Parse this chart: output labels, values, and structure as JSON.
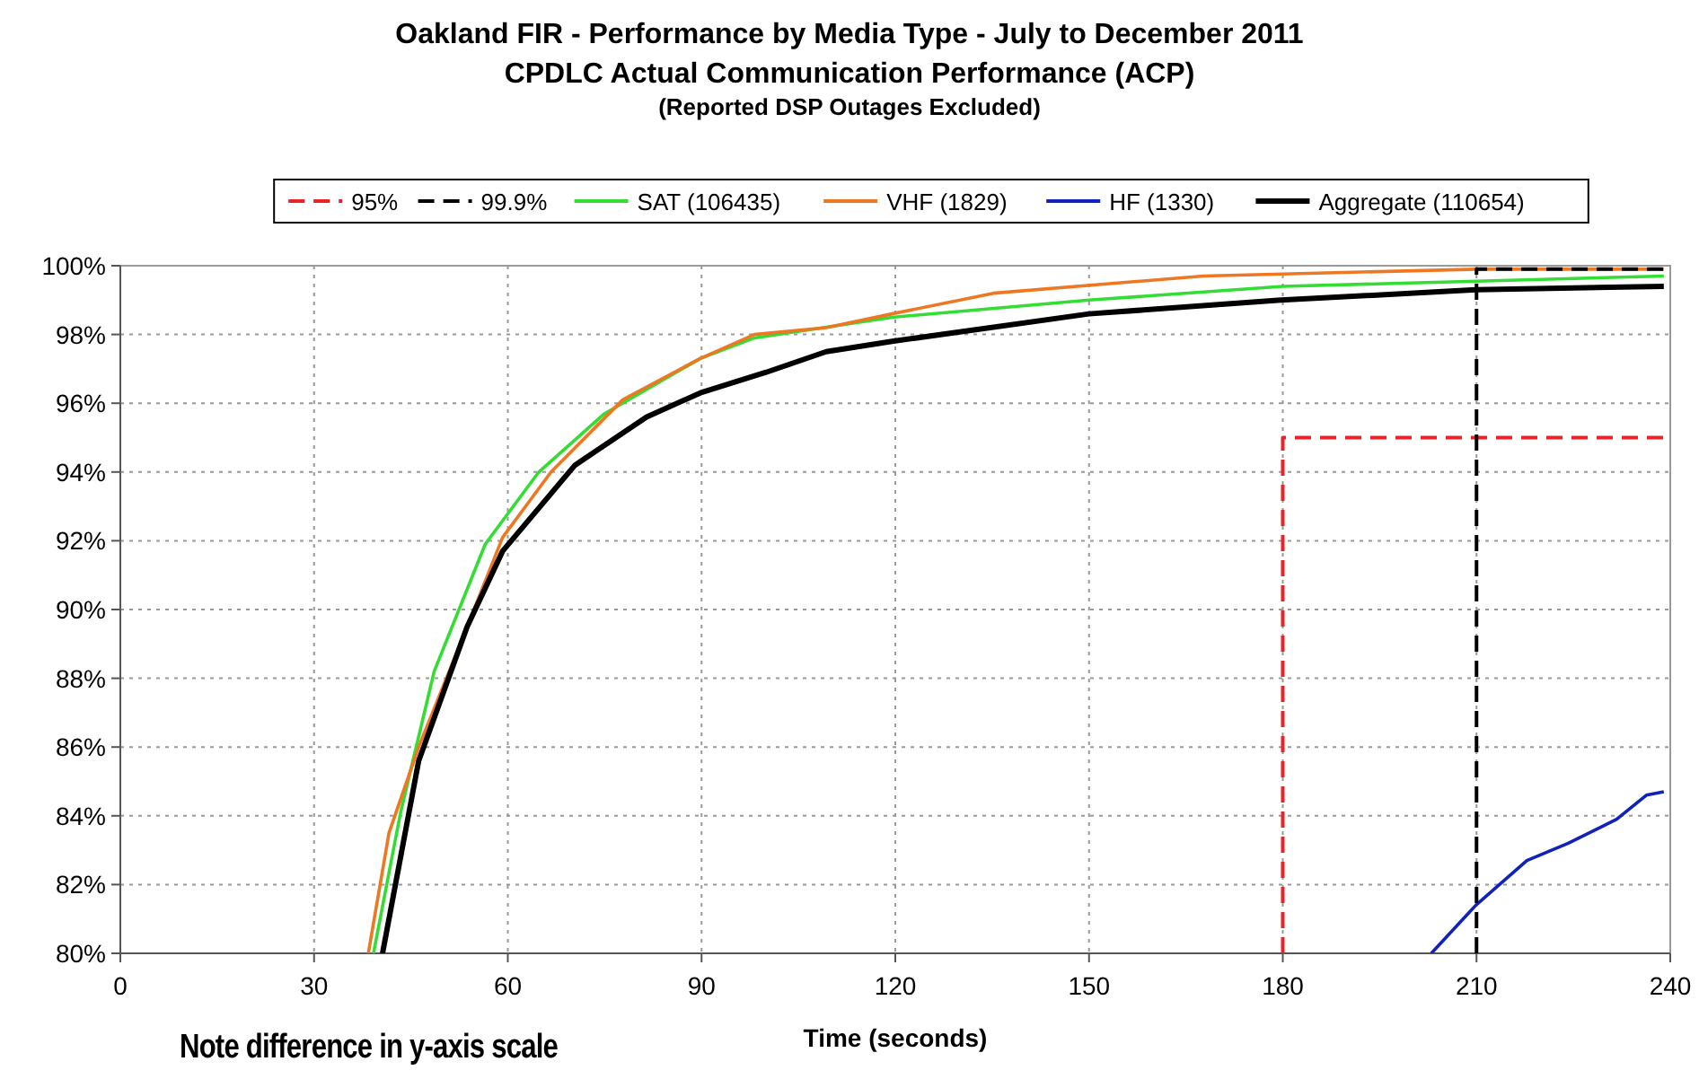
{
  "chart_data": {
    "type": "line",
    "title": "Oakland FIR - Performance by Media Type - July to December 2011",
    "subtitle": "CPDLC Actual Communication Performance (ACP)\n(Reported DSP Outages Excluded)",
    "xlabel": "Time (seconds)",
    "annotations": [
      "Note difference in y-axis scale"
    ],
    "xlim": [
      0,
      240
    ],
    "xticks": [
      0,
      30,
      60,
      90,
      120,
      150,
      180,
      210,
      240
    ],
    "ylim": [
      80,
      100
    ],
    "yticks": [
      {
        "value": 80,
        "label": "80%"
      },
      {
        "value": 82,
        "label": "82%"
      },
      {
        "value": 84,
        "label": "84%"
      },
      {
        "value": 86,
        "label": "86%"
      },
      {
        "value": 88,
        "label": "88%"
      },
      {
        "value": 90,
        "label": "90%"
      },
      {
        "value": 92,
        "label": "92%"
      },
      {
        "value": 94,
        "label": "94%"
      },
      {
        "value": 96,
        "label": "96%"
      },
      {
        "value": 98,
        "label": "98%"
      },
      {
        "value": 100,
        "label": "100%"
      }
    ],
    "grid": true,
    "legend": "top",
    "series": [
      {
        "name": "95%",
        "color": "#e8242a",
        "line_style": "dashed",
        "x": [
          180,
          180,
          240
        ],
        "values": [
          80,
          95,
          95
        ]
      },
      {
        "name": "99.9%",
        "color": "#000000",
        "line_style": "dashed",
        "x": [
          210,
          210,
          240
        ],
        "values": [
          80,
          99.9,
          99.9
        ]
      },
      {
        "name": "SAT (106435)",
        "color": "#33dd33",
        "x": [
          39.2,
          43.4,
          48.6,
          56.5,
          64.8,
          75,
          89.8,
          98.2,
          119.5,
          150,
          180,
          210,
          239
        ],
        "values": [
          80,
          84.1,
          88.2,
          91.9,
          94.0,
          95.7,
          97.3,
          97.9,
          98.5,
          99.0,
          99.4,
          99.55,
          99.7
        ]
      },
      {
        "name": "VHF (1829)",
        "color": "#ee7722",
        "x": [
          38.4,
          41.6,
          46.2,
          53.7,
          59.2,
          66.7,
          77.8,
          89.8,
          98.2,
          109.3,
          119.5,
          135.2,
          167.7,
          210,
          239
        ],
        "values": [
          80,
          83.5,
          86.0,
          89.5,
          92.1,
          94.0,
          96.1,
          97.3,
          98.0,
          98.2,
          98.6,
          99.2,
          99.7,
          99.9,
          99.9
        ]
      },
      {
        "name": "HF (1330)",
        "color": "#1122bb",
        "x": [
          203,
          209.9,
          217.8,
          224.2,
          231.7,
          236.3,
          239
        ],
        "values": [
          80,
          81.4,
          82.7,
          83.2,
          83.9,
          84.6,
          84.7
        ]
      },
      {
        "name": "Aggregate (110654)",
        "color": "#000000",
        "x": [
          40.6,
          46.2,
          53.7,
          59.2,
          70.4,
          81.5,
          89.8,
          100,
          109.3,
          119.5,
          150,
          179.7,
          209.9,
          239
        ],
        "values": [
          80,
          85.6,
          89.5,
          91.7,
          94.2,
          95.6,
          96.3,
          96.9,
          97.5,
          97.8,
          98.6,
          99.0,
          99.3,
          99.4
        ]
      }
    ]
  }
}
